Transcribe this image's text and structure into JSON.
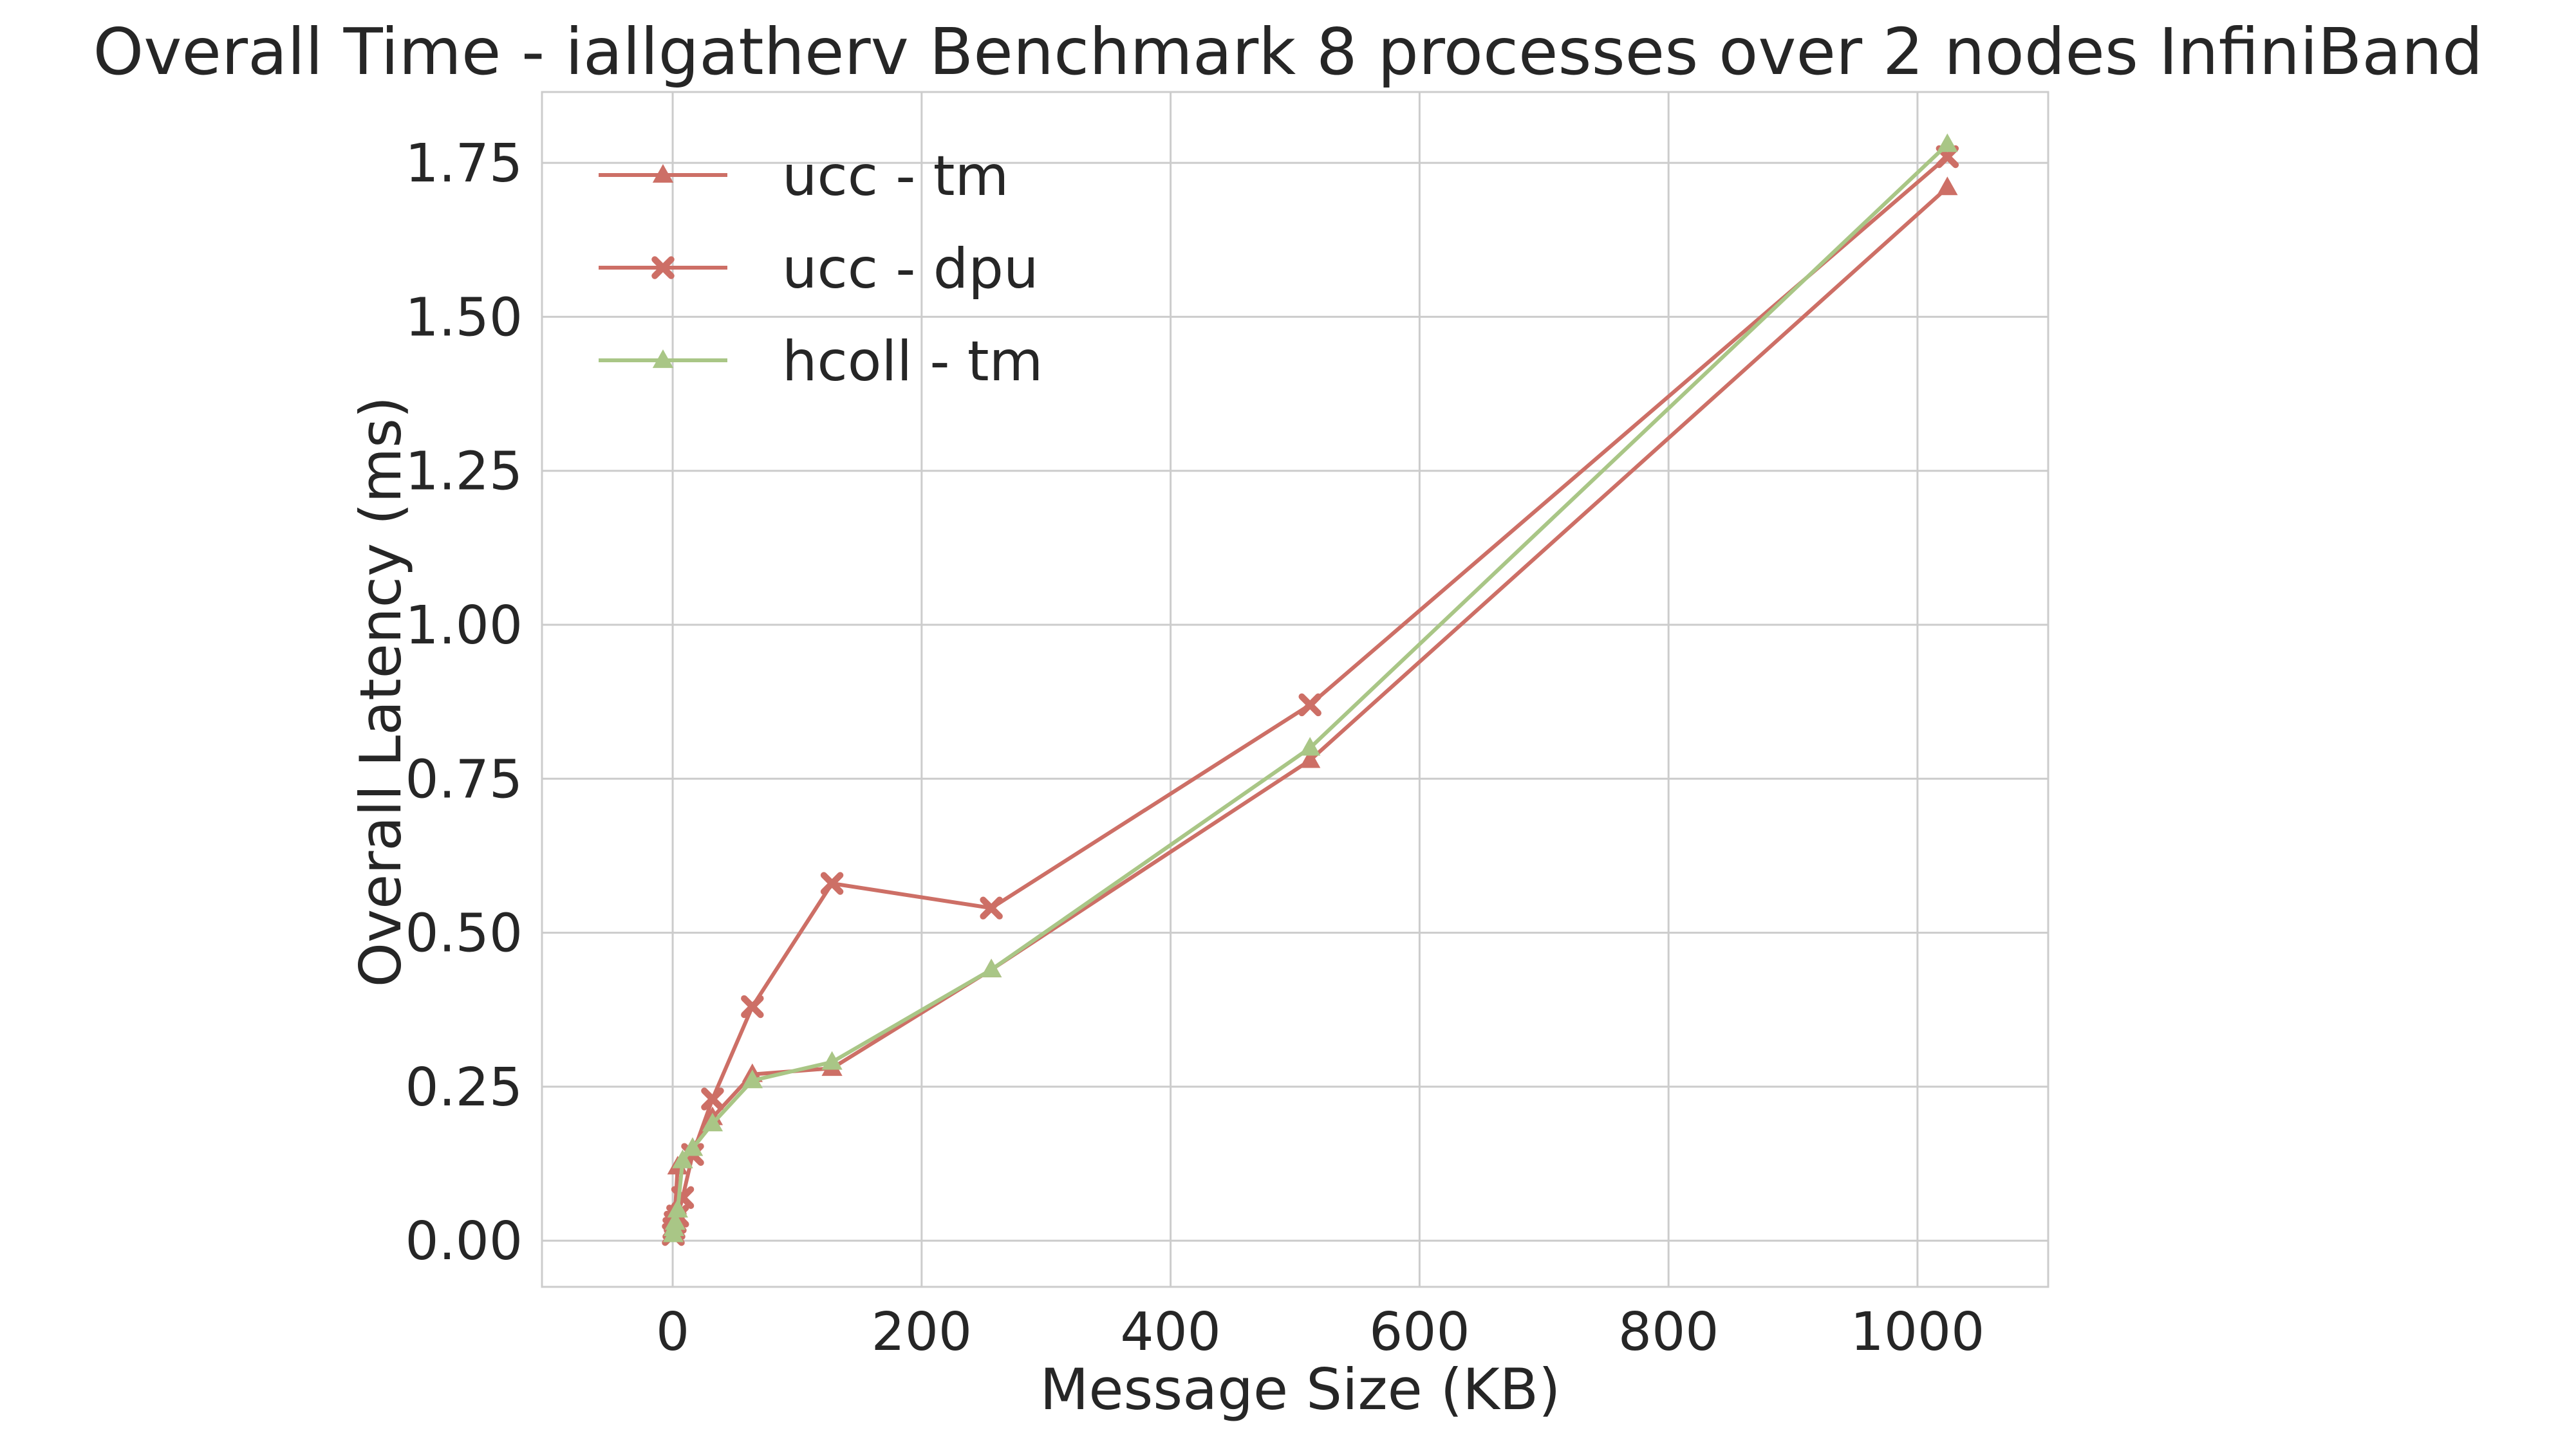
{
  "chart_data": {
    "type": "line",
    "title": "Overall Time - iallgatherv Benchmark 8 processes over 2 nodes InfiniBand",
    "xlabel": "Message Size (KB)",
    "ylabel": "Overall Latency (ms)",
    "xlim": [
      -105,
      1105
    ],
    "ylim": [
      -0.075,
      1.865
    ],
    "xticks": [
      0,
      200,
      400,
      600,
      800,
      1000
    ],
    "yticks": [
      0.0,
      0.25,
      0.5,
      0.75,
      1.0,
      1.25,
      1.5,
      1.75
    ],
    "xtick_labels": [
      "0",
      "200",
      "400",
      "600",
      "800",
      "1000"
    ],
    "ytick_labels": [
      "0.00",
      "0.25",
      "0.50",
      "0.75",
      "1.00",
      "1.25",
      "1.50",
      "1.75"
    ],
    "grid": true,
    "legend_position": "top-left",
    "series": [
      {
        "name": "ucc - tm",
        "color": "#cd6f66",
        "marker": "triangle",
        "x": [
          0.5,
          1,
          2,
          4,
          8,
          16,
          32,
          64,
          128,
          256,
          512,
          1024
        ],
        "y": [
          0.02,
          0.03,
          0.05,
          0.12,
          0.13,
          0.15,
          0.2,
          0.27,
          0.28,
          0.44,
          0.78,
          1.71
        ]
      },
      {
        "name": "ucc - dpu",
        "color": "#cd6f66",
        "marker": "x",
        "x": [
          0.5,
          1,
          2,
          4,
          8,
          16,
          32,
          64,
          128,
          256,
          512,
          1024
        ],
        "y": [
          0.01,
          0.02,
          0.03,
          0.04,
          0.07,
          0.14,
          0.23,
          0.38,
          0.58,
          0.54,
          0.87,
          1.76
        ]
      },
      {
        "name": "hcoll - tm",
        "color": "#a9c686",
        "marker": "triangle",
        "x": [
          0.5,
          1,
          2,
          4,
          8,
          16,
          32,
          64,
          128,
          256,
          512,
          1024
        ],
        "y": [
          0.01,
          0.02,
          0.03,
          0.05,
          0.13,
          0.15,
          0.19,
          0.26,
          0.29,
          0.44,
          0.8,
          1.78
        ]
      }
    ]
  }
}
